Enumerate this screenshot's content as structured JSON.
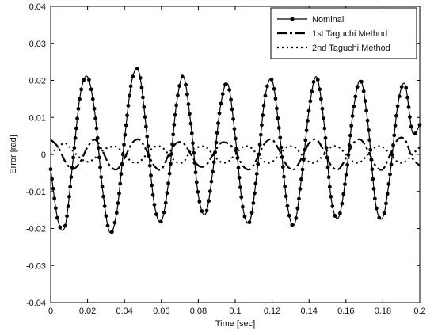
{
  "chart_data": {
    "type": "line",
    "title": "",
    "xlabel": "Time [sec]",
    "ylabel": "Error [rad]",
    "xlim": [
      0,
      0.2
    ],
    "ylim": [
      -0.04,
      0.04
    ],
    "xticks": [
      "0",
      "0.02",
      "0.04",
      "0.06",
      "0.08",
      "0.1",
      "0.12",
      "0.14",
      "0.16",
      "0.18",
      "0.2"
    ],
    "yticks": [
      "0.04",
      "0.03",
      "0.02",
      "0.01",
      "0",
      "-0.01",
      "-0.02",
      "-0.03",
      "-0.04"
    ],
    "grid": false,
    "legend_position": "top-right",
    "series": [
      {
        "name": "Nominal",
        "style": "solid with dot markers",
        "x": [
          0,
          0.004,
          0.008,
          0.012,
          0.016,
          0.02,
          0.024,
          0.028,
          0.032,
          0.036,
          0.04,
          0.044,
          0.048,
          0.052,
          0.056,
          0.06,
          0.064,
          0.068,
          0.072,
          0.076,
          0.08,
          0.084,
          0.088,
          0.092,
          0.096,
          0.1,
          0.104,
          0.108,
          0.112,
          0.116,
          0.12,
          0.124,
          0.128,
          0.132,
          0.136,
          0.14,
          0.144,
          0.148,
          0.152,
          0.156,
          0.16,
          0.164,
          0.168,
          0.172,
          0.176,
          0.18,
          0.184,
          0.188,
          0.192,
          0.196,
          0.2
        ],
        "y": [
          -0.004,
          -0.018,
          -0.019,
          -0.002,
          0.016,
          0.021,
          0.011,
          -0.009,
          -0.021,
          -0.015,
          0.004,
          0.02,
          0.022,
          0.006,
          -0.013,
          -0.018,
          -0.007,
          0.013,
          0.021,
          0.008,
          -0.011,
          -0.016,
          -0.004,
          0.013,
          0.019,
          0.005,
          -0.014,
          -0.018,
          -0.004,
          0.015,
          0.02,
          0.006,
          -0.013,
          -0.019,
          -0.006,
          0.012,
          0.021,
          0.009,
          -0.012,
          -0.017,
          -0.006,
          0.012,
          0.02,
          0.008,
          -0.013,
          -0.017,
          -0.005,
          0.013,
          0.019,
          0.006,
          0.008
        ]
      },
      {
        "name": "1st Taguchi Method",
        "style": "dash-dot",
        "x": [
          0,
          0.004,
          0.008,
          0.012,
          0.016,
          0.02,
          0.024,
          0.028,
          0.032,
          0.036,
          0.04,
          0.044,
          0.048,
          0.052,
          0.056,
          0.06,
          0.064,
          0.068,
          0.072,
          0.076,
          0.08,
          0.084,
          0.088,
          0.092,
          0.096,
          0.1,
          0.104,
          0.108,
          0.112,
          0.116,
          0.12,
          0.124,
          0.128,
          0.132,
          0.136,
          0.14,
          0.144,
          0.148,
          0.152,
          0.156,
          0.16,
          0.164,
          0.168,
          0.172,
          0.176,
          0.18,
          0.184,
          0.188,
          0.192,
          0.196,
          0.2
        ],
        "y": [
          0.004,
          0.002,
          -0.002,
          -0.004,
          -0.002,
          0.002,
          0.004,
          0.001,
          -0.003,
          -0.004,
          -0.001,
          0.003,
          0.004,
          0.001,
          -0.003,
          -0.004,
          0,
          0.003,
          0.003,
          0,
          -0.003,
          -0.003,
          0,
          0.003,
          0.003,
          0.001,
          -0.003,
          -0.004,
          -0.001,
          0.003,
          0.004,
          0.001,
          -0.003,
          -0.004,
          -0.001,
          0.003,
          0.004,
          0.001,
          -0.003,
          -0.004,
          -0.001,
          0.003,
          0.004,
          0.001,
          -0.003,
          -0.004,
          0,
          0.004,
          0.004,
          -0.001,
          -0.003
        ]
      },
      {
        "name": "2nd Taguchi Method",
        "style": "dotted",
        "x": [
          0,
          0.004,
          0.008,
          0.012,
          0.016,
          0.02,
          0.024,
          0.028,
          0.032,
          0.036,
          0.04,
          0.044,
          0.048,
          0.052,
          0.056,
          0.06,
          0.064,
          0.068,
          0.072,
          0.076,
          0.08,
          0.084,
          0.088,
          0.092,
          0.096,
          0.1,
          0.104,
          0.108,
          0.112,
          0.116,
          0.12,
          0.124,
          0.128,
          0.132,
          0.136,
          0.14,
          0.144,
          0.148,
          0.152,
          0.156,
          0.16,
          0.164,
          0.168,
          0.172,
          0.176,
          0.18,
          0.184,
          0.188,
          0.192,
          0.196,
          0.2
        ],
        "y": [
          0,
          0.002,
          0.003,
          0.001,
          -0.001,
          -0.002,
          -0.001,
          0.001,
          0.002,
          0.002,
          0,
          -0.002,
          -0.002,
          0,
          0.002,
          0.002,
          0,
          -0.002,
          -0.002,
          0.001,
          0.002,
          0.002,
          0,
          -0.002,
          -0.002,
          0,
          0.002,
          0.002,
          0,
          -0.002,
          -0.002,
          0,
          0.002,
          0.002,
          0,
          -0.002,
          -0.002,
          0,
          0.002,
          0.002,
          0,
          -0.002,
          -0.002,
          0,
          0.002,
          0.002,
          0,
          -0.002,
          -0.002,
          0,
          0.002
        ]
      }
    ]
  }
}
